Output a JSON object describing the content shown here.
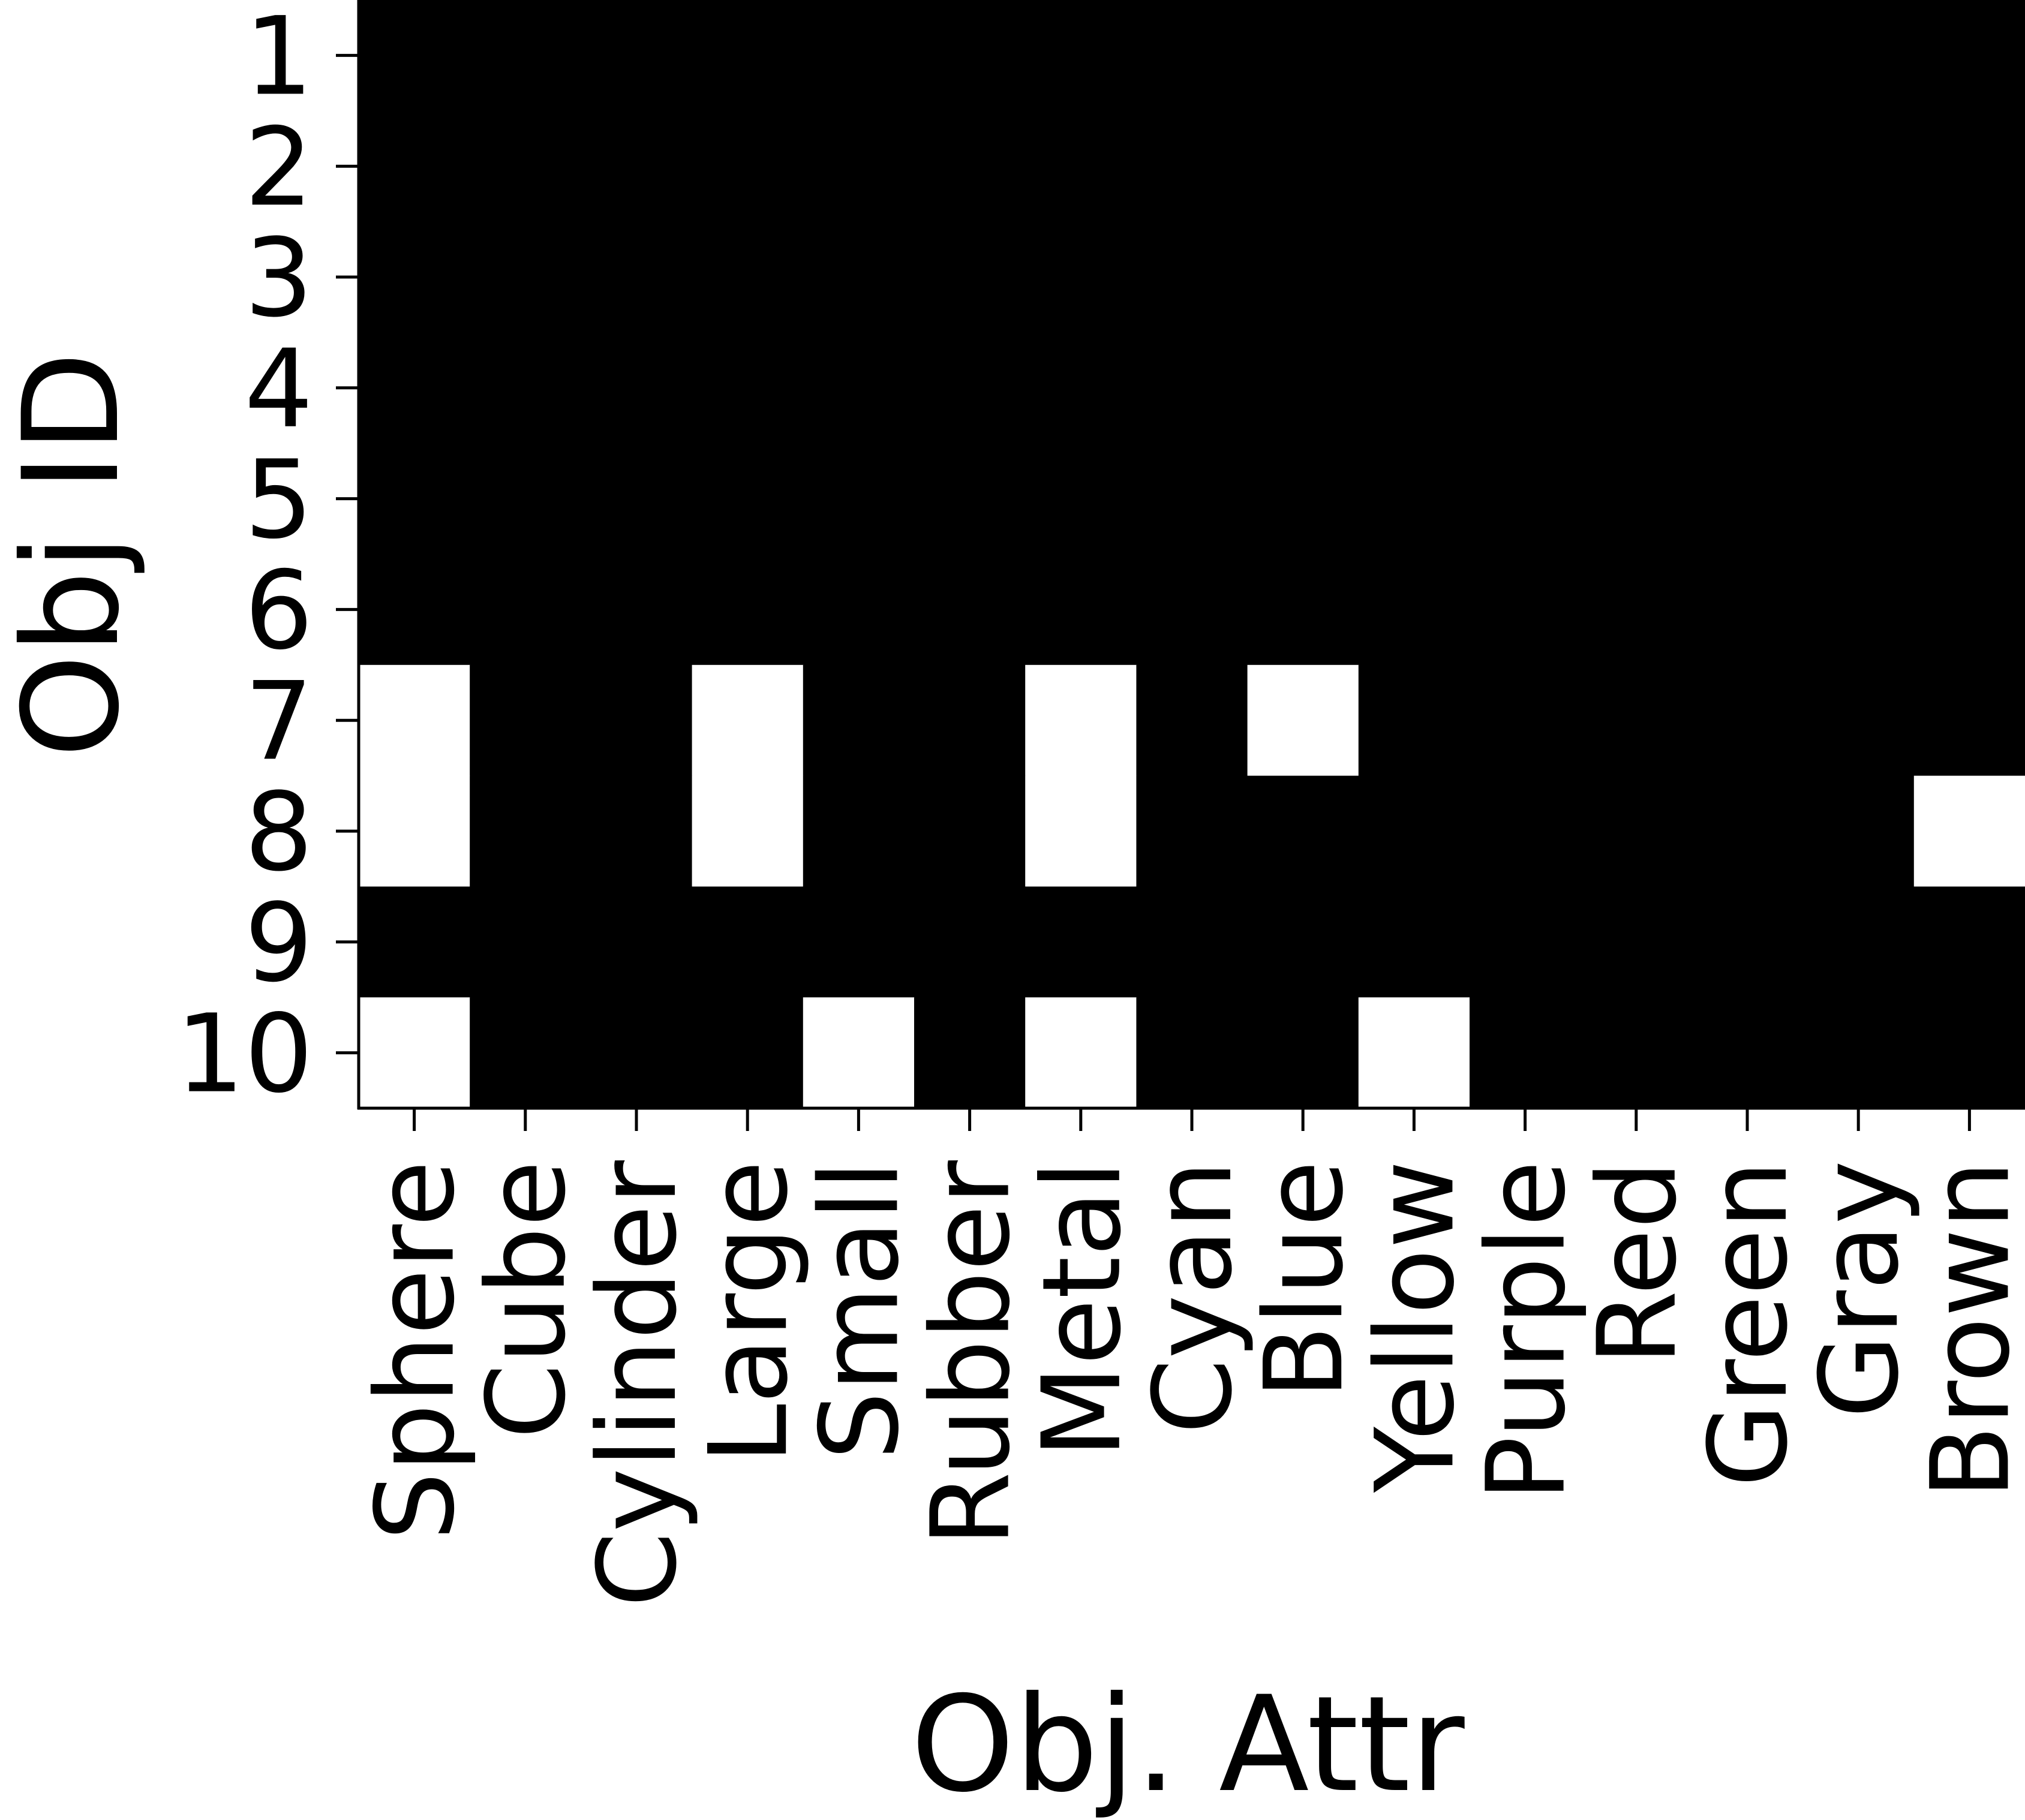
{
  "chart_data": {
    "type": "heatmap",
    "title": "",
    "xlabel": "Obj. Attr",
    "ylabel": "Obj ID",
    "x_categories": [
      "Sphere",
      "Cube",
      "Cylinder",
      "Large",
      "Small",
      "Rubber",
      "Metal",
      "Cyan",
      "Blue",
      "Yellow",
      "Purple",
      "Red",
      "Green",
      "Gray",
      "Brown"
    ],
    "y_categories": [
      "1",
      "2",
      "3",
      "4",
      "5",
      "6",
      "7",
      "8",
      "9",
      "10"
    ],
    "values": [
      [
        0,
        0,
        0,
        0,
        0,
        0,
        0,
        0,
        0,
        0,
        0,
        0,
        0,
        0,
        0
      ],
      [
        0,
        0,
        0,
        0,
        0,
        0,
        0,
        0,
        0,
        0,
        0,
        0,
        0,
        0,
        0
      ],
      [
        0,
        0,
        0,
        0,
        0,
        0,
        0,
        0,
        0,
        0,
        0,
        0,
        0,
        0,
        0
      ],
      [
        0,
        0,
        0,
        0,
        0,
        0,
        0,
        0,
        0,
        0,
        0,
        0,
        0,
        0,
        0
      ],
      [
        0,
        0,
        0,
        0,
        0,
        0,
        0,
        0,
        0,
        0,
        0,
        0,
        0,
        0,
        0
      ],
      [
        0,
        0,
        0,
        0,
        0,
        0,
        0,
        0,
        0,
        0,
        0,
        0,
        0,
        0,
        0
      ],
      [
        1,
        0,
        0,
        1,
        0,
        0,
        1,
        0,
        1,
        0,
        0,
        0,
        0,
        0,
        0
      ],
      [
        1,
        0,
        0,
        1,
        0,
        0,
        1,
        0,
        0,
        0,
        0,
        0,
        0,
        0,
        1
      ],
      [
        0,
        0,
        0,
        0,
        0,
        0,
        0,
        0,
        0,
        0,
        0,
        0,
        0,
        0,
        0
      ],
      [
        1,
        0,
        0,
        0,
        1,
        0,
        1,
        0,
        0,
        1,
        0,
        0,
        0,
        0,
        0
      ]
    ],
    "colormap": {
      "0": "#000000",
      "1": "#ffffff"
    },
    "grid": false
  }
}
